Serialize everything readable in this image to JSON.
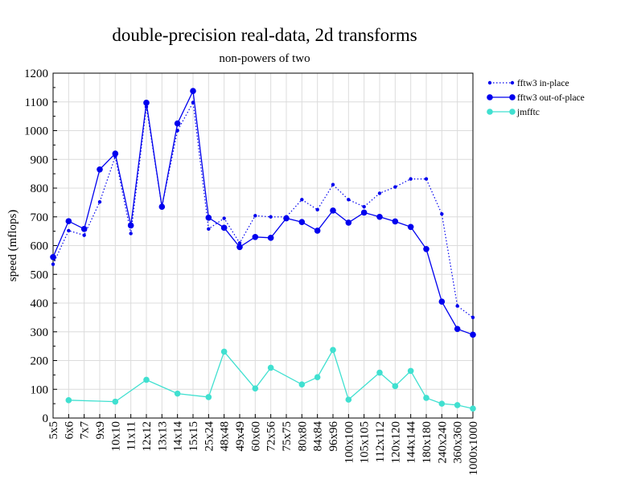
{
  "chart_data": {
    "type": "line",
    "title": "double-precision real-data, 2d transforms",
    "subtitle": "non-powers of two",
    "xlabel": "",
    "ylabel": "speed (mflops)",
    "ylim": [
      0,
      1200
    ],
    "yticks": [
      "0",
      "100",
      "200",
      "300",
      "400",
      "500",
      "600",
      "700",
      "800",
      "900",
      "1000",
      "1100",
      "1200"
    ],
    "grid": true,
    "legend_position": "top-right, outside plot",
    "categories": [
      "5x5",
      "6x6",
      "7x7",
      "9x9",
      "10x10",
      "11x11",
      "12x12",
      "13x13",
      "14x14",
      "15x15",
      "25x24",
      "48x48",
      "49x49",
      "60x60",
      "72x56",
      "75x75",
      "80x80",
      "84x84",
      "96x96",
      "100x100",
      "105x105",
      "112x112",
      "120x120",
      "144x144",
      "180x180",
      "240x240",
      "360x360",
      "1000x1000"
    ],
    "series": [
      {
        "name": "fftw3 in-place",
        "color": "#0000ee",
        "style": "dotted",
        "marker_size": "small",
        "values": [
          535,
          652,
          636,
          752,
          910,
          642,
          1083,
          735,
          1000,
          1098,
          658,
          695,
          609,
          704,
          700,
          700,
          760,
          725,
          812,
          760,
          735,
          782,
          804,
          832,
          832,
          710,
          390,
          350
        ]
      },
      {
        "name": "fftw3 out-of-place",
        "color": "#0000ee",
        "style": "solid",
        "marker_size": "large",
        "values": [
          560,
          685,
          658,
          865,
          920,
          670,
          1097,
          735,
          1025,
          1138,
          697,
          662,
          595,
          630,
          627,
          695,
          682,
          652,
          722,
          680,
          715,
          700,
          684,
          665,
          588,
          405,
          310,
          290
        ]
      },
      {
        "name": "jmfftc",
        "color": "#40e0d0",
        "style": "solid",
        "marker_size": "large",
        "values": [
          null,
          62,
          null,
          null,
          57,
          null,
          133,
          null,
          85,
          null,
          73,
          231,
          null,
          103,
          175,
          null,
          117,
          142,
          237,
          64,
          null,
          158,
          111,
          164,
          70,
          50,
          45,
          33
        ]
      }
    ]
  }
}
